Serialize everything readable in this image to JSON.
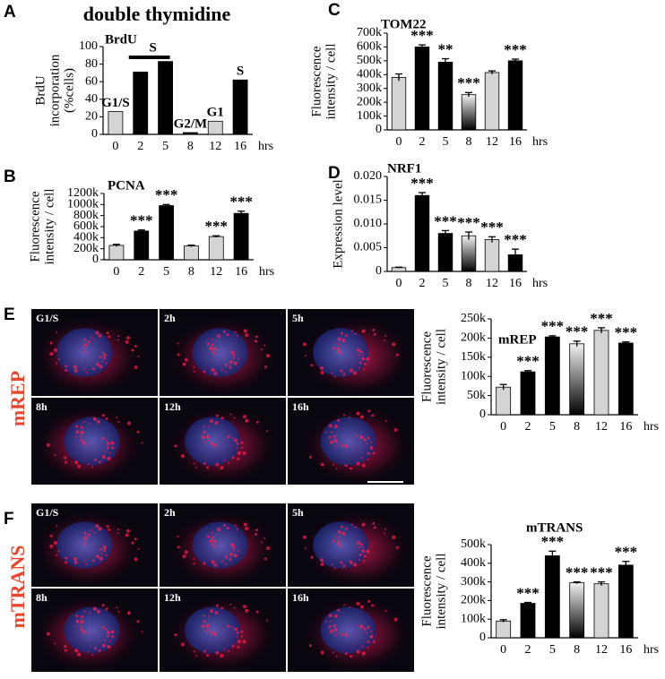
{
  "figure": {
    "heading": "double thymidine",
    "panel_letters": [
      "A",
      "B",
      "C",
      "D",
      "E",
      "F"
    ],
    "micrographs": [
      {
        "row_label": "mREP",
        "labels": [
          "G1/S",
          "2h",
          "5h",
          "8h",
          "12h",
          "16h"
        ]
      },
      {
        "row_label": "mTRANS",
        "labels": [
          "G1/S",
          "2h",
          "5h",
          "8h",
          "12h",
          "16h"
        ]
      }
    ]
  },
  "chart_data": [
    {
      "type": "bar",
      "title": "BrdU",
      "ylabel": [
        "BrdU",
        "incorporation",
        "(%cells)"
      ],
      "x_unit": "hrs",
      "categories": [
        "0",
        "2",
        "5",
        "8",
        "12",
        "16"
      ],
      "values": [
        26,
        71,
        83,
        2,
        15,
        62
      ],
      "colors": [
        "#d4d4d4",
        "#000000",
        "#000000",
        "#000000",
        "#d4d4d4",
        "#000000"
      ],
      "annotations": [
        "G1/S",
        "S",
        null,
        "G2/M",
        "G1",
        "S"
      ],
      "ylim": [
        0,
        100
      ],
      "yticks": [
        0,
        20,
        40,
        60,
        80,
        100
      ]
    },
    {
      "type": "bar",
      "title": "PCNA",
      "ylabel": [
        "Fluorescence",
        "intensity / cell"
      ],
      "x_unit": "hrs",
      "categories": [
        "0",
        "2",
        "5",
        "8",
        "12",
        "16"
      ],
      "values": [
        260000,
        520000,
        980000,
        250000,
        420000,
        840000
      ],
      "errors": [
        20000,
        20000,
        20000,
        15000,
        15000,
        40000
      ],
      "colors": [
        "#d4d4d4",
        "#000000",
        "#000000",
        "#d4d4d4",
        "#d4d4d4",
        "#000000"
      ],
      "annotations": [
        null,
        "***",
        "***",
        null,
        "***",
        "***"
      ],
      "ylim": [
        0,
        1200000
      ],
      "yticks": [
        0,
        {
          "value": 200000,
          "label": "200k"
        },
        {
          "value": 400000,
          "label": "400k"
        },
        {
          "value": 600000,
          "label": "600k"
        },
        {
          "value": 800000,
          "label": "800k"
        },
        {
          "value": 1000000,
          "label": "1000k"
        },
        {
          "value": 1200000,
          "label": "1200k"
        }
      ]
    },
    {
      "type": "bar",
      "title": "TOM22",
      "ylabel": [
        "Fluorescence",
        "intensity / cell"
      ],
      "x_unit": "hrs",
      "categories": [
        "0",
        "2",
        "5",
        "8",
        "12",
        "16"
      ],
      "values": [
        380000,
        600000,
        490000,
        255000,
        415000,
        500000
      ],
      "errors": [
        25000,
        15000,
        25000,
        15000,
        12000,
        12000
      ],
      "colors": [
        "#d4d4d4",
        "#000000",
        "#000000",
        "gradient",
        "#d4d4d4",
        "#000000"
      ],
      "annotations": [
        null,
        "***",
        "**",
        "***",
        null,
        "***"
      ],
      "ylim": [
        0,
        700000
      ],
      "yticks": [
        0,
        {
          "value": 100000,
          "label": "100k"
        },
        {
          "value": 200000,
          "label": "200k"
        },
        {
          "value": 300000,
          "label": "300k"
        },
        {
          "value": 400000,
          "label": "400k"
        },
        {
          "value": 500000,
          "label": "500k"
        },
        {
          "value": 600000,
          "label": "600k"
        },
        {
          "value": 700000,
          "label": "700k"
        }
      ]
    },
    {
      "type": "bar",
      "title": "NRF1",
      "ylabel": [
        "Expression level"
      ],
      "x_unit": "hrs",
      "categories": [
        "0",
        "2",
        "5",
        "8",
        "12",
        "16"
      ],
      "values": [
        0.0008,
        0.016,
        0.008,
        0.0075,
        0.0067,
        0.0035
      ],
      "errors": [
        0.0001,
        0.0006,
        0.0006,
        0.0008,
        0.0006,
        0.0012
      ],
      "colors": [
        "#d4d4d4",
        "#000000",
        "#000000",
        "gradient",
        "#d4d4d4",
        "#000000"
      ],
      "annotations": [
        null,
        "***",
        "***",
        "***",
        "***",
        "***"
      ],
      "ylim": [
        0,
        0.02
      ],
      "yticks": [
        0,
        0.005,
        {
          "value": 0.01,
          "label": "0.010"
        },
        0.015,
        {
          "value": 0.02,
          "label": "0.020"
        }
      ]
    },
    {
      "type": "bar",
      "title": "mREP",
      "ylabel": [
        "Fluorescence",
        "intensity / cell"
      ],
      "x_unit": "hrs",
      "categories": [
        "0",
        "2",
        "5",
        "8",
        "12",
        "16"
      ],
      "values": [
        72000,
        112000,
        203000,
        185000,
        220000,
        187000
      ],
      "errors": [
        7000,
        3000,
        3000,
        7000,
        7000,
        3000
      ],
      "colors": [
        "#d4d4d4",
        "#000000",
        "#000000",
        "gradient",
        "#d4d4d4",
        "#000000"
      ],
      "annotations": [
        null,
        "***",
        "***",
        "***",
        "***",
        "***"
      ],
      "ylim": [
        0,
        250000
      ],
      "yticks": [
        0,
        {
          "value": 50000,
          "label": "50k"
        },
        {
          "value": 100000,
          "label": "100k"
        },
        {
          "value": 150000,
          "label": "150k"
        },
        {
          "value": 200000,
          "label": "200k"
        },
        {
          "value": 250000,
          "label": "250k"
        }
      ]
    },
    {
      "type": "bar",
      "title": "mTRANS",
      "ylabel": [
        "Fluorescence",
        "intensity / cell"
      ],
      "x_unit": "hrs",
      "categories": [
        "0",
        "2",
        "5",
        "8",
        "12",
        "16"
      ],
      "values": [
        90000,
        185000,
        440000,
        295000,
        290000,
        390000
      ],
      "errors": [
        7000,
        5000,
        25000,
        5000,
        10000,
        20000
      ],
      "colors": [
        "#d4d4d4",
        "#000000",
        "#000000",
        "gradient",
        "#d4d4d4",
        "#000000"
      ],
      "annotations": [
        null,
        "***",
        "***",
        "***",
        "***",
        "***"
      ],
      "ylim": [
        0,
        500000
      ],
      "yticks": [
        0,
        {
          "value": 100000,
          "label": "100k"
        },
        {
          "value": 200000,
          "label": "200k"
        },
        {
          "value": 300000,
          "label": "300k"
        },
        {
          "value": 400000,
          "label": "400k"
        },
        {
          "value": 500000,
          "label": "500k"
        }
      ]
    }
  ]
}
